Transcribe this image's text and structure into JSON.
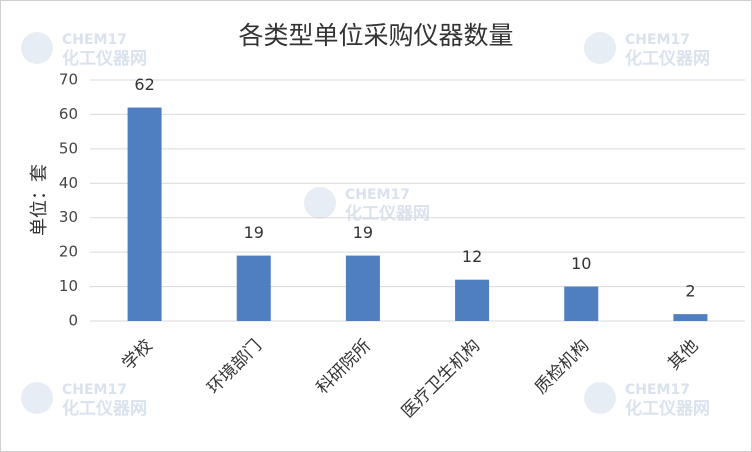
{
  "chart_data": {
    "type": "bar",
    "title": "各类型单位采购仪器数量",
    "y_label": "单位：套",
    "categories": [
      "学校",
      "环境部门",
      "科研院所",
      "医疗卫生机构",
      "质检机构",
      "其他"
    ],
    "values": [
      62,
      19,
      19,
      12,
      10,
      2
    ],
    "color": "#4f7fbf",
    "ylim": [
      0,
      70
    ],
    "yticks": [
      0,
      10,
      20,
      30,
      40,
      50,
      60,
      70
    ],
    "grid": true
  },
  "watermark": {
    "brand": "CHEM17",
    "name": "化工仪器网"
  }
}
